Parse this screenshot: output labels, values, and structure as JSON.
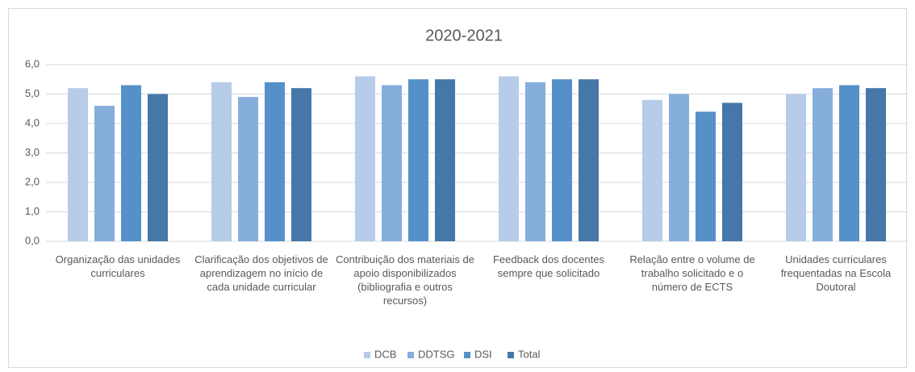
{
  "chart_data": {
    "type": "bar",
    "title": "2020-2021",
    "categories": [
      "Organização das unidades curriculares",
      "Clarificação dos objetivos de aprendizagem no início de cada unidade curricular",
      "Contribuição dos materiais de apoio disponibilizados (bibliografia e outros recursos)",
      "Feedback dos docentes sempre que solicitado",
      "Relação entre o volume de trabalho solicitado e o número de ECTS",
      "Unidades curriculares frequentadas na Escola Doutoral"
    ],
    "series": [
      {
        "name": "DCB",
        "color": "#b7cce8",
        "values": [
          5.2,
          5.4,
          5.6,
          5.6,
          4.8,
          5.0
        ]
      },
      {
        "name": "DDTSG",
        "color": "#86aedc",
        "values": [
          4.6,
          4.9,
          5.3,
          5.4,
          5.0,
          5.2
        ]
      },
      {
        "name": "DSI",
        "color": "#5591c8",
        "values": [
          5.3,
          5.4,
          5.5,
          5.5,
          4.4,
          5.3
        ]
      },
      {
        "name": "Total",
        "color": "#4577a8",
        "values": [
          5.0,
          5.2,
          5.5,
          5.5,
          4.7,
          5.2
        ]
      }
    ],
    "ylim": [
      0,
      6
    ],
    "yticks": [
      {
        "value": 0,
        "label": "0,0"
      },
      {
        "value": 1,
        "label": "1,0"
      },
      {
        "value": 2,
        "label": "2,0"
      },
      {
        "value": 3,
        "label": "3,0"
      },
      {
        "value": 4,
        "label": "4,0"
      },
      {
        "value": 5,
        "label": "5,0"
      },
      {
        "value": 6,
        "label": "6,0"
      }
    ],
    "grid": true,
    "legend": "bottom"
  }
}
